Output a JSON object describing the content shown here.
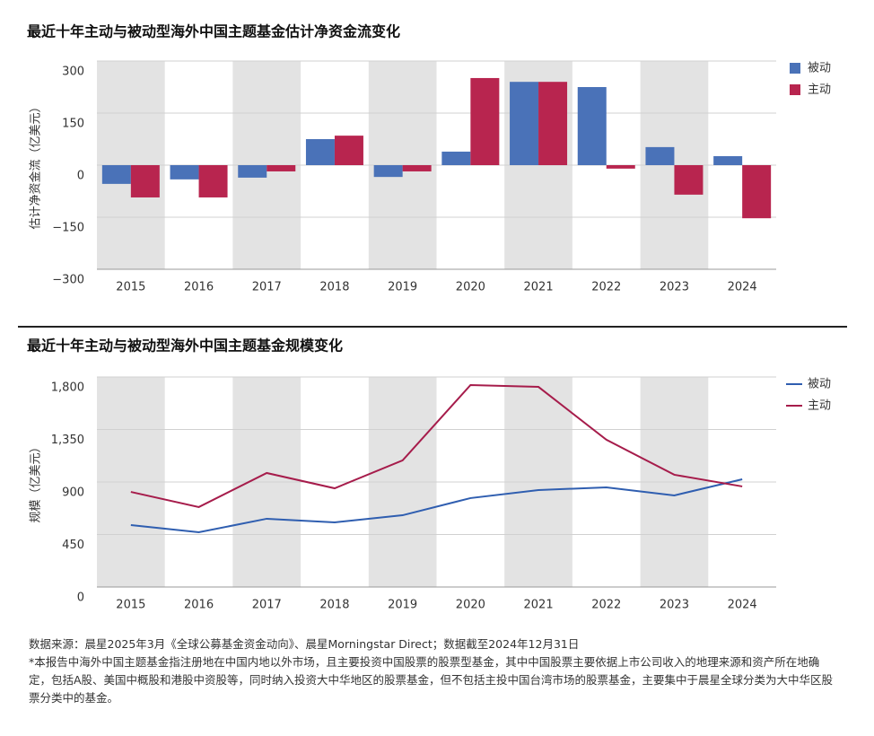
{
  "chart_data": [
    {
      "type": "bar",
      "title": "最近十年主动与被动型海外中国主题基金估计净资金流变化",
      "ylabel": "估计净资金流（亿美元）",
      "categories": [
        "2015",
        "2016",
        "2017",
        "2018",
        "2019",
        "2020",
        "2021",
        "2022",
        "2023",
        "2024"
      ],
      "series": [
        {
          "name": "被动",
          "color": "#4a72b8",
          "values": [
            -54,
            -41,
            -36,
            75,
            -34,
            39,
            240,
            225,
            52,
            26
          ]
        },
        {
          "name": "主动",
          "color": "#b8254f",
          "values": [
            -93,
            -93,
            -18,
            85,
            -18,
            251,
            240,
            -10,
            -85,
            -153
          ]
        }
      ],
      "ylim": [
        -300,
        300
      ],
      "yticks": [
        {
          "value": -300,
          "label": "−300"
        },
        {
          "value": -150,
          "label": "−150"
        },
        0,
        150,
        300
      ],
      "shaded_bands": true,
      "legend": "right"
    },
    {
      "type": "line",
      "title": "最近十年主动与被动型海外中国主题基金规模变化",
      "ylabel": "规模（亿美元）",
      "categories": [
        "2015",
        "2016",
        "2017",
        "2018",
        "2019",
        "2020",
        "2021",
        "2022",
        "2023",
        "2024"
      ],
      "series": [
        {
          "name": "被动",
          "color": "#2f5eb0",
          "values": [
            531,
            469,
            585,
            554,
            615,
            762,
            831,
            854,
            785,
            923
          ]
        },
        {
          "name": "主动",
          "color": "#a61c4b",
          "values": [
            815,
            685,
            977,
            846,
            1085,
            1731,
            1715,
            1262,
            962,
            862
          ]
        }
      ],
      "ylim": [
        0,
        1800
      ],
      "yticks": [
        0,
        450,
        900,
        {
          "value": 1350,
          "label": "1,350"
        },
        {
          "value": 1800,
          "label": "1,800"
        }
      ],
      "shaded_bands": true,
      "legend": "right"
    }
  ],
  "notes": [
    "数据来源：晨星2025年3月《全球公募基金资金动向》、晨星Morningstar Direct；数据截至2024年12月31日",
    "*本报告中海外中国主题基金指注册地在中国内地以外市场，且主要投资中国股票的股票型基金，其中中国股票主要依据上市公司收入的地理来源和资产所在地确定，包括A股、美国中概股和港股中资股等，同时纳入投资大中华地区的股票基金，但不包括主投中国台湾市场的股票基金，主要集中于晨星全球分类为大中华区股票分类中的基金。"
  ]
}
